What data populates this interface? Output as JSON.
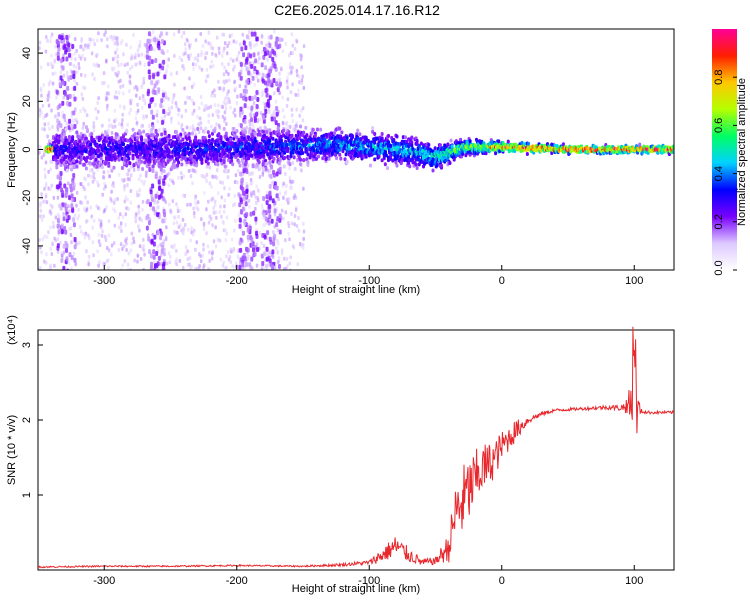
{
  "title": "C2E6.2025.014.17.16.R12",
  "chart_data": [
    {
      "type": "heatmap",
      "xlabel": "Height of straight line (km)",
      "ylabel": "Frequency (Hz)",
      "xlim": [
        -350,
        130
      ],
      "ylim": [
        -50,
        50
      ],
      "x_ticks": [
        -300,
        -200,
        -100,
        0,
        100
      ],
      "y_ticks": [
        -40,
        -20,
        0,
        20,
        40
      ],
      "colorbar": {
        "label": "Normalized spectral amplitude",
        "range": [
          0,
          1
        ],
        "ticks": [
          "0.0",
          "0.2",
          "0.4",
          "0.6",
          "0.8"
        ],
        "colors": [
          "#ffffff",
          "#dcc8ff",
          "#7800ff",
          "#0000ff",
          "#00d2ff",
          "#00ff64",
          "#b4ff00",
          "#ffc800",
          "#ff1e00",
          "#ff0096"
        ]
      },
      "band": [
        {
          "x": -340,
          "center": 0,
          "spread": 8,
          "amp": 0.3
        },
        {
          "x": -250,
          "center": 0,
          "spread": 8,
          "amp": 0.32
        },
        {
          "x": -180,
          "center": 1,
          "spread": 7,
          "amp": 0.35
        },
        {
          "x": -120,
          "center": 2,
          "spread": 6,
          "amp": 0.42
        },
        {
          "x": -80,
          "center": 0,
          "spread": 6,
          "amp": 0.45
        },
        {
          "x": -50,
          "center": -3,
          "spread": 5,
          "amp": 0.5
        },
        {
          "x": -30,
          "center": 1,
          "spread": 3,
          "amp": 0.6
        },
        {
          "x": 0,
          "center": 1,
          "spread": 2,
          "amp": 0.85
        },
        {
          "x": 50,
          "center": 0,
          "spread": 1.5,
          "amp": 0.9
        },
        {
          "x": 130,
          "center": 0,
          "spread": 1.5,
          "amp": 0.9
        }
      ]
    },
    {
      "type": "line",
      "xlabel": "Height of straight line (km)",
      "ylabel": "SNR (10 * v/v)",
      "y_multiplier": "(x10⁴)",
      "xlim": [
        -350,
        130
      ],
      "ylim": [
        0,
        3.2
      ],
      "x_ticks": [
        -300,
        -200,
        -100,
        0,
        100
      ],
      "y_ticks": [
        1,
        2,
        3
      ],
      "series": [
        {
          "color": "#e8282d",
          "x": [
            -350,
            -300,
            -250,
            -200,
            -150,
            -120,
            -100,
            -90,
            -80,
            -70,
            -60,
            -50,
            -40,
            -35,
            -30,
            -25,
            -20,
            -15,
            -10,
            -5,
            0,
            10,
            20,
            30,
            40,
            60,
            80,
            90,
            95,
            100,
            105,
            110,
            130
          ],
          "y": [
            0.04,
            0.05,
            0.05,
            0.06,
            0.05,
            0.07,
            0.1,
            0.2,
            0.32,
            0.2,
            0.1,
            0.12,
            0.3,
            0.75,
            0.9,
            1.05,
            1.2,
            1.35,
            1.4,
            1.5,
            1.65,
            1.85,
            2.0,
            2.08,
            2.13,
            2.15,
            2.17,
            2.16,
            2.2,
            2.14,
            2.12,
            2.1,
            2.1
          ],
          "noise": [
            0.01,
            0.01,
            0.01,
            0.01,
            0.01,
            0.02,
            0.03,
            0.1,
            0.15,
            0.1,
            0.05,
            0.05,
            0.2,
            0.4,
            0.5,
            0.45,
            0.4,
            0.35,
            0.3,
            0.25,
            0.2,
            0.15,
            0.05,
            0.03,
            0.02,
            0.02,
            0.03,
            0.04,
            0.12,
            0.6,
            0.03,
            0.02,
            0.02
          ]
        }
      ]
    }
  ]
}
